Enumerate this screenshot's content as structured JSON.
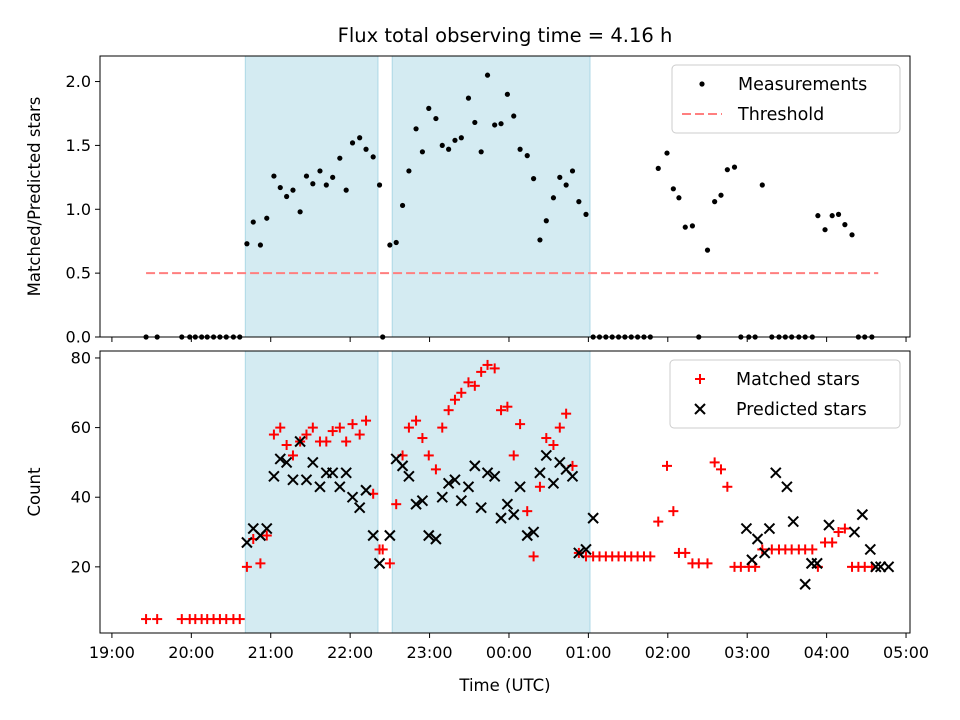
{
  "title": "Flux total observing time = 4.16 h",
  "x_tick_labels": [
    "19:00",
    "20:00",
    "21:00",
    "22:00",
    "23:00",
    "00:00",
    "01:00",
    "02:00",
    "03:00",
    "04:00",
    "05:00"
  ],
  "xlabel": "Time (UTC)",
  "colors": {
    "shade": "#add8e6",
    "measure": "#000000",
    "threshold": "#ff7f7f",
    "matched": "#ff0000",
    "predicted": "#000000"
  },
  "chart_data": [
    {
      "type": "scatter",
      "name": "ratio-panel",
      "ylabel": "Matched/Predicted stars",
      "xunit": "hours since 19:00 UTC",
      "xlim": [
        -0.15,
        10.05
      ],
      "ylim": [
        0,
        2.2
      ],
      "yticks": [
        0.0,
        0.5,
        1.0,
        1.5,
        2.0
      ],
      "ytick_labels": [
        "0.0",
        "0.5",
        "1.0",
        "1.5",
        "2.0"
      ],
      "shaded_intervals": [
        [
          1.68,
          3.35
        ],
        [
          3.53,
          6.02
        ]
      ],
      "legend": {
        "position": "top-right",
        "entries": [
          "Measurements",
          "Threshold"
        ]
      },
      "series": [
        {
          "name": "Measurements",
          "x": [
            0.43,
            0.57,
            0.88,
            0.98,
            1.05,
            1.13,
            1.2,
            1.28,
            1.36,
            1.44,
            1.53,
            1.61,
            1.7,
            1.78,
            1.87,
            1.95,
            2.04,
            2.12,
            2.2,
            2.28,
            2.37,
            2.45,
            2.53,
            2.62,
            2.7,
            2.78,
            2.87,
            2.95,
            3.03,
            3.12,
            3.2,
            3.29,
            3.37,
            3.41,
            3.5,
            3.58,
            3.66,
            3.74,
            3.83,
            3.91,
            3.99,
            4.08,
            4.16,
            4.24,
            4.32,
            4.4,
            4.49,
            4.57,
            4.65,
            4.73,
            4.82,
            4.9,
            4.98,
            5.06,
            5.14,
            5.23,
            5.31,
            5.39,
            5.47,
            5.56,
            5.64,
            5.72,
            5.8,
            5.88,
            5.97,
            6.06,
            6.14,
            6.22,
            6.3,
            6.38,
            6.46,
            6.54,
            6.62,
            6.7,
            6.78,
            6.88,
            6.99,
            7.07,
            7.14,
            7.22,
            7.31,
            7.39,
            7.5,
            7.59,
            7.67,
            7.75,
            7.84,
            7.92,
            8.02,
            8.1,
            8.19,
            8.31,
            8.4,
            8.48,
            8.56,
            8.65,
            8.73,
            8.82,
            8.89,
            8.98,
            9.07,
            9.15,
            9.23,
            9.32,
            9.4,
            9.48,
            9.57
          ],
          "y": [
            0,
            0,
            0,
            0,
            0,
            0,
            0,
            0,
            0,
            0,
            0,
            0,
            0.73,
            0.9,
            0.72,
            0.93,
            1.26,
            1.17,
            1.1,
            1.15,
            0.98,
            1.26,
            1.2,
            1.3,
            1.19,
            1.25,
            1.4,
            1.15,
            1.52,
            1.56,
            1.47,
            1.41,
            1.19,
            0,
            0.72,
            0.74,
            1.03,
            1.3,
            1.63,
            1.45,
            1.79,
            1.71,
            1.5,
            1.47,
            1.54,
            1.56,
            1.87,
            1.68,
            1.45,
            2.05,
            1.66,
            1.67,
            1.9,
            1.73,
            1.47,
            1.42,
            1.24,
            0.76,
            0.91,
            1.09,
            1.25,
            1.19,
            1.3,
            1.06,
            0.96,
            0,
            0,
            0,
            0,
            0,
            0,
            0,
            0,
            0,
            0,
            1.32,
            1.44,
            1.16,
            1.09,
            0.86,
            0.87,
            0,
            0.68,
            1.06,
            1.11,
            1.31,
            1.33,
            0,
            0,
            0,
            1.19,
            0,
            0,
            0,
            0,
            0,
            0,
            0,
            0.95,
            0.84,
            0.95,
            0.96,
            0.88,
            0.8,
            0,
            0,
            0
          ]
        },
        {
          "name": "Threshold",
          "x": [
            0.43,
            9.65
          ],
          "y": [
            0.5,
            0.5
          ]
        }
      ]
    },
    {
      "type": "scatter",
      "name": "count-panel",
      "ylabel": "Count",
      "xunit": "hours since 19:00 UTC",
      "xlim": [
        -0.15,
        10.05
      ],
      "ylim": [
        1,
        82
      ],
      "yticks": [
        20,
        40,
        60,
        80
      ],
      "ytick_labels": [
        "20",
        "40",
        "60",
        "80"
      ],
      "shaded_intervals": [
        [
          1.68,
          3.35
        ],
        [
          3.53,
          6.02
        ]
      ],
      "legend": {
        "position": "top-right",
        "entries": [
          "Matched stars",
          "Predicted stars"
        ]
      },
      "series": [
        {
          "name": "Matched stars",
          "x": [
            0.43,
            0.57,
            0.88,
            0.98,
            1.05,
            1.13,
            1.2,
            1.28,
            1.36,
            1.44,
            1.53,
            1.61,
            1.7,
            1.78,
            1.87,
            1.95,
            2.04,
            2.12,
            2.2,
            2.28,
            2.37,
            2.45,
            2.53,
            2.62,
            2.7,
            2.78,
            2.87,
            2.95,
            3.03,
            3.12,
            3.2,
            3.29,
            3.37,
            3.41,
            3.5,
            3.58,
            3.66,
            3.74,
            3.83,
            3.91,
            3.99,
            4.08,
            4.16,
            4.24,
            4.32,
            4.4,
            4.49,
            4.57,
            4.65,
            4.73,
            4.82,
            4.9,
            4.98,
            5.06,
            5.14,
            5.23,
            5.31,
            5.39,
            5.47,
            5.56,
            5.64,
            5.72,
            5.8,
            5.88,
            5.97,
            6.06,
            6.14,
            6.22,
            6.3,
            6.38,
            6.46,
            6.54,
            6.62,
            6.7,
            6.78,
            6.88,
            6.99,
            7.07,
            7.14,
            7.22,
            7.31,
            7.39,
            7.5,
            7.59,
            7.67,
            7.75,
            7.84,
            7.92,
            8.02,
            8.1,
            8.19,
            8.31,
            8.4,
            8.48,
            8.56,
            8.65,
            8.73,
            8.82,
            8.89,
            8.98,
            9.07,
            9.15,
            9.23,
            9.32,
            9.4,
            9.48,
            9.57
          ],
          "y": [
            5,
            5,
            5,
            5,
            5,
            5,
            5,
            5,
            5,
            5,
            5,
            5,
            20,
            28,
            21,
            29,
            58,
            60,
            55,
            52,
            56,
            58,
            60,
            56,
            56,
            59,
            60,
            56,
            61,
            58,
            62,
            41,
            25,
            25,
            21,
            38,
            52,
            60,
            62,
            57,
            52,
            48,
            60,
            65,
            68,
            70,
            73,
            72,
            76,
            78,
            77,
            65,
            66,
            52,
            61,
            36,
            23,
            43,
            57,
            55,
            60,
            64,
            49,
            24,
            23,
            23,
            23,
            23,
            23,
            23,
            23,
            23,
            23,
            23,
            23,
            33,
            49,
            36,
            24,
            24,
            21,
            21,
            21,
            50,
            48,
            43,
            20,
            20,
            20,
            20,
            25,
            25,
            25,
            25,
            25,
            25,
            25,
            25,
            20,
            27,
            27,
            30,
            31,
            20,
            20,
            20,
            20
          ]
        },
        {
          "name": "Predicted stars",
          "x": [
            1.7,
            1.78,
            1.87,
            1.95,
            2.04,
            2.12,
            2.2,
            2.28,
            2.37,
            2.45,
            2.53,
            2.62,
            2.7,
            2.78,
            2.87,
            2.95,
            3.03,
            3.12,
            3.2,
            3.29,
            3.37,
            3.5,
            3.58,
            3.66,
            3.74,
            3.83,
            3.91,
            3.99,
            4.08,
            4.16,
            4.24,
            4.32,
            4.4,
            4.49,
            4.57,
            4.65,
            4.73,
            4.82,
            4.9,
            4.98,
            5.06,
            5.14,
            5.23,
            5.31,
            5.39,
            5.47,
            5.56,
            5.64,
            5.72,
            5.8,
            5.88,
            5.97,
            6.06,
            7.99,
            8.06,
            8.13,
            8.22,
            8.28,
            8.36,
            8.5,
            8.58,
            8.73,
            8.81,
            8.88,
            9.03,
            9.35,
            9.45,
            9.55,
            9.62,
            9.68,
            9.78
          ],
          "y": [
            27,
            31,
            29,
            31,
            46,
            51,
            50,
            45,
            56,
            45,
            50,
            43,
            47,
            47,
            43,
            47,
            40,
            37,
            42,
            29,
            21,
            29,
            51,
            49,
            46,
            38,
            39,
            29,
            28,
            40,
            44,
            45,
            39,
            43,
            49,
            37,
            47,
            46,
            34,
            38,
            35,
            43,
            29,
            30,
            47,
            52,
            44,
            50,
            48,
            46,
            24,
            25,
            34,
            31,
            22,
            28,
            24,
            31,
            47,
            43,
            33,
            15,
            21,
            21,
            32,
            30,
            35,
            25,
            20,
            20,
            20
          ]
        }
      ]
    }
  ]
}
